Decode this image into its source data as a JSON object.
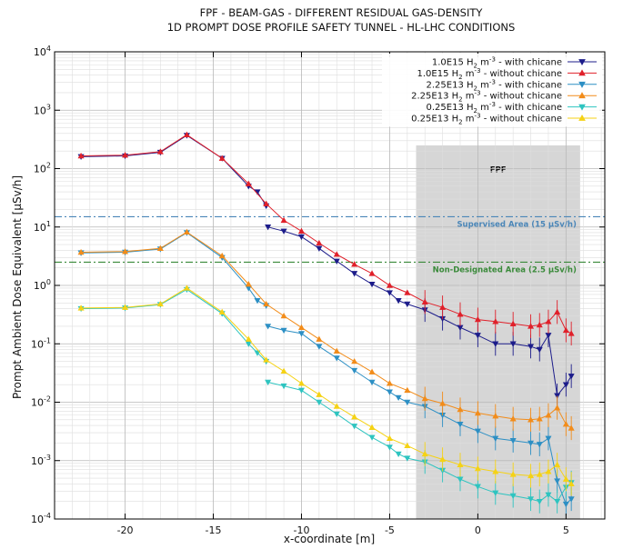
{
  "chart_data": {
    "type": "scatter",
    "title": "FPF - BEAM-GAS - DIFFERENT RESIDUAL GAS-DENSITY",
    "subtitle": "1D PROMPT DOSE PROFILE SAFETY TUNNEL - HL-LHC CONDITIONS",
    "xlabel": "x-coordinate [m]",
    "ylabel": "Prompt Ambient Dose Equivalent [μSv/h]",
    "x_ticks": [
      "-20",
      "-15",
      "-10",
      "-5",
      "0",
      "5"
    ],
    "y_ticks": [
      {
        "base": "10",
        "exp": "-4"
      },
      {
        "base": "10",
        "exp": "-3"
      },
      {
        "base": "10",
        "exp": "-2"
      },
      {
        "base": "10",
        "exp": "-1"
      },
      {
        "base": "10",
        "exp": "0"
      },
      {
        "base": "10",
        "exp": "1"
      },
      {
        "base": "10",
        "exp": "2"
      },
      {
        "base": "10",
        "exp": "3"
      },
      {
        "base": "10",
        "exp": "4"
      }
    ],
    "xlim": [
      -24,
      7.2
    ],
    "ylim": [
      0.0001,
      10000
    ],
    "yscale": "log",
    "grid": true,
    "legend_position": "top-right",
    "shaded_region": {
      "label": "FPF",
      "x_start": -3.5,
      "x_end": 5.8,
      "y_top": 250,
      "color": "#d6d6d6"
    },
    "reference_lines": [
      {
        "label": "Supervised Area (15 μSv/h)",
        "y": 15,
        "color": "#4a86b8",
        "style": "dashdot"
      },
      {
        "label": "Non-Designated Area (2.5 μSv/h)",
        "y": 2.5,
        "color": "#3a8a3a",
        "style": "dashdot"
      }
    ],
    "series": [
      {
        "name_pre": "1.0E15 H",
        "name_sub": "2",
        "name_mid": " m",
        "name_sup": "-3",
        "name_post": " - with chicane",
        "color": "#1c1c8a",
        "marker": "tri-down",
        "x": [
          -22.5,
          -20,
          -18,
          -16.5,
          -14.5,
          -13,
          -12.5,
          -12,
          -11.9,
          -11,
          -10,
          -9,
          -8,
          -7,
          -6,
          -5,
          -4.5,
          -4,
          -3,
          -2,
          -1,
          0,
          1,
          2,
          3,
          3.5,
          4,
          4.5,
          5,
          5.3
        ],
        "y": [
          160,
          165,
          190,
          370,
          150,
          50,
          40,
          23,
          10,
          8.5,
          6.8,
          4.3,
          2.6,
          1.6,
          1.05,
          0.75,
          0.55,
          0.48,
          0.38,
          0.27,
          0.19,
          0.14,
          0.1,
          0.1,
          0.09,
          0.08,
          0.14,
          0.013,
          0.02,
          0.028
        ]
      },
      {
        "name_pre": "1.0E15 H",
        "name_sub": "2",
        "name_mid": " m",
        "name_sup": "-3",
        "name_post": " - without chicane",
        "color": "#e0202a",
        "marker": "tri-up",
        "x": [
          -22.5,
          -20,
          -18,
          -16.5,
          -14.5,
          -13,
          -12,
          -11,
          -10,
          -9,
          -8,
          -7,
          -6,
          -5,
          -4,
          -3,
          -2,
          -1,
          0,
          1,
          2,
          3,
          3.5,
          4,
          4.5,
          5,
          5.3
        ],
        "y": [
          165,
          170,
          195,
          380,
          150,
          55,
          25,
          13,
          8.5,
          5.3,
          3.4,
          2.3,
          1.6,
          1.0,
          0.75,
          0.52,
          0.42,
          0.32,
          0.26,
          0.24,
          0.22,
          0.2,
          0.21,
          0.24,
          0.35,
          0.17,
          0.15
        ]
      },
      {
        "name_pre": "2.25E13 H",
        "name_sub": "2",
        "name_mid": " m",
        "name_sup": "-3",
        "name_post": " - with chicane",
        "color": "#2c8fc4",
        "marker": "tri-down",
        "x": [
          -22.5,
          -20,
          -18,
          -16.5,
          -14.5,
          -13,
          -12.5,
          -12,
          -11.9,
          -11,
          -10,
          -9,
          -8,
          -7,
          -6,
          -5,
          -4.5,
          -4,
          -3,
          -2,
          -1,
          0,
          1,
          2,
          3,
          3.5,
          4,
          4.5,
          5,
          5.3
        ],
        "y": [
          3.6,
          3.7,
          4.2,
          8.0,
          3.0,
          0.9,
          0.55,
          0.45,
          0.2,
          0.17,
          0.15,
          0.09,
          0.057,
          0.035,
          0.022,
          0.015,
          0.012,
          0.01,
          0.0085,
          0.006,
          0.0042,
          0.0032,
          0.0024,
          0.0022,
          0.002,
          0.0019,
          0.0024,
          0.00045,
          0.00018,
          0.00022
        ]
      },
      {
        "name_pre": "2.25E13 H",
        "name_sub": "2",
        "name_mid": " m",
        "name_sup": "-3",
        "name_post": " - without chicane",
        "color": "#f28c1a",
        "marker": "tri-up",
        "x": [
          -22.5,
          -20,
          -18,
          -16.5,
          -14.5,
          -13,
          -12,
          -11,
          -10,
          -9,
          -8,
          -7,
          -6,
          -5,
          -4,
          -3,
          -2,
          -1,
          0,
          1,
          2,
          3,
          3.5,
          4,
          4.5,
          5,
          5.3
        ],
        "y": [
          3.7,
          3.8,
          4.3,
          8.2,
          3.2,
          1.05,
          0.48,
          0.3,
          0.19,
          0.12,
          0.075,
          0.05,
          0.033,
          0.021,
          0.016,
          0.0115,
          0.0095,
          0.0075,
          0.0065,
          0.0058,
          0.0052,
          0.005,
          0.0052,
          0.006,
          0.008,
          0.0042,
          0.0036
        ]
      },
      {
        "name_pre": "0.25E13 H",
        "name_sub": "2",
        "name_mid": " m",
        "name_sup": "-3",
        "name_post": " - with chicane",
        "color": "#2ec4c0",
        "marker": "tri-down",
        "x": [
          -22.5,
          -20,
          -18,
          -16.5,
          -14.5,
          -13,
          -12.5,
          -12,
          -11.9,
          -11,
          -10,
          -9,
          -8,
          -7,
          -6,
          -5,
          -4.5,
          -4,
          -3,
          -2,
          -1,
          0,
          1,
          2,
          3,
          3.5,
          4,
          4.5,
          5,
          5.3
        ],
        "y": [
          0.4,
          0.41,
          0.47,
          0.85,
          0.33,
          0.1,
          0.07,
          0.05,
          0.022,
          0.019,
          0.016,
          0.01,
          0.0063,
          0.0039,
          0.0025,
          0.0017,
          0.0013,
          0.0011,
          0.00095,
          0.00068,
          0.00048,
          0.00036,
          0.00028,
          0.00025,
          0.00022,
          0.0002,
          0.00026,
          0.0002,
          0.00035,
          0.00042
        ]
      },
      {
        "name_pre": "0.25E13 H",
        "name_sub": "2",
        "name_mid": " m",
        "name_sup": "-3",
        "name_post": " - without chicane",
        "color": "#f5d214",
        "marker": "tri-up",
        "x": [
          -22.5,
          -20,
          -18,
          -16.5,
          -14.5,
          -13,
          -12,
          -11,
          -10,
          -9,
          -8,
          -7,
          -6,
          -5,
          -4,
          -3,
          -2,
          -1,
          0,
          1,
          2,
          3,
          3.5,
          4,
          4.5,
          5,
          5.3
        ],
        "y": [
          0.41,
          0.42,
          0.48,
          0.9,
          0.35,
          0.12,
          0.053,
          0.034,
          0.021,
          0.0135,
          0.0085,
          0.0056,
          0.0037,
          0.0024,
          0.0018,
          0.0013,
          0.00105,
          0.00085,
          0.00073,
          0.00065,
          0.00058,
          0.00055,
          0.00058,
          0.00065,
          0.00085,
          0.00048,
          0.0004
        ]
      }
    ]
  }
}
